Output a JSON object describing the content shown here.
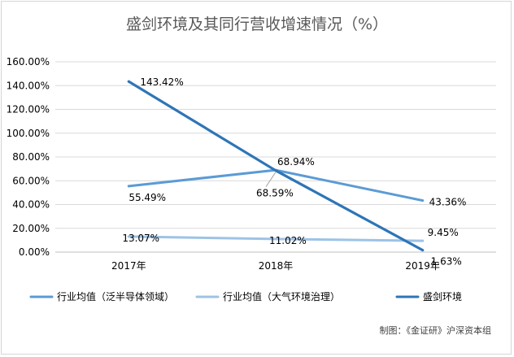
{
  "chart_data": {
    "type": "line",
    "title": "盛剑环境及其同行营收增速情况（%）",
    "categories": [
      "2017年",
      "2018年",
      "2019年"
    ],
    "ylim": [
      0,
      160
    ],
    "yticks": [
      "0.00%",
      "20.00%",
      "40.00%",
      "60.00%",
      "80.00%",
      "100.00%",
      "120.00%",
      "140.00%",
      "160.00%"
    ],
    "grid": true,
    "legend_position": "bottom",
    "series": [
      {
        "name": "行业均值（泛半导体领域）",
        "values": [
          55.49,
          68.94,
          43.36
        ],
        "labels": [
          "55.49%",
          "68.94%",
          "43.36%"
        ],
        "color": "#5b9bd5"
      },
      {
        "name": "行业均值（大气环境治理）",
        "values": [
          13.07,
          11.02,
          9.45
        ],
        "labels": [
          "13.07%",
          "11.02%",
          "9.45%"
        ],
        "color": "#9dc3e6"
      },
      {
        "name": "盛剑环境",
        "values": [
          143.42,
          68.59,
          1.63
        ],
        "labels": [
          "143.42%",
          "68.59%",
          "1.63%"
        ],
        "color": "#2e75b6"
      }
    ],
    "source": "制图：《金证研》沪深资本组"
  }
}
